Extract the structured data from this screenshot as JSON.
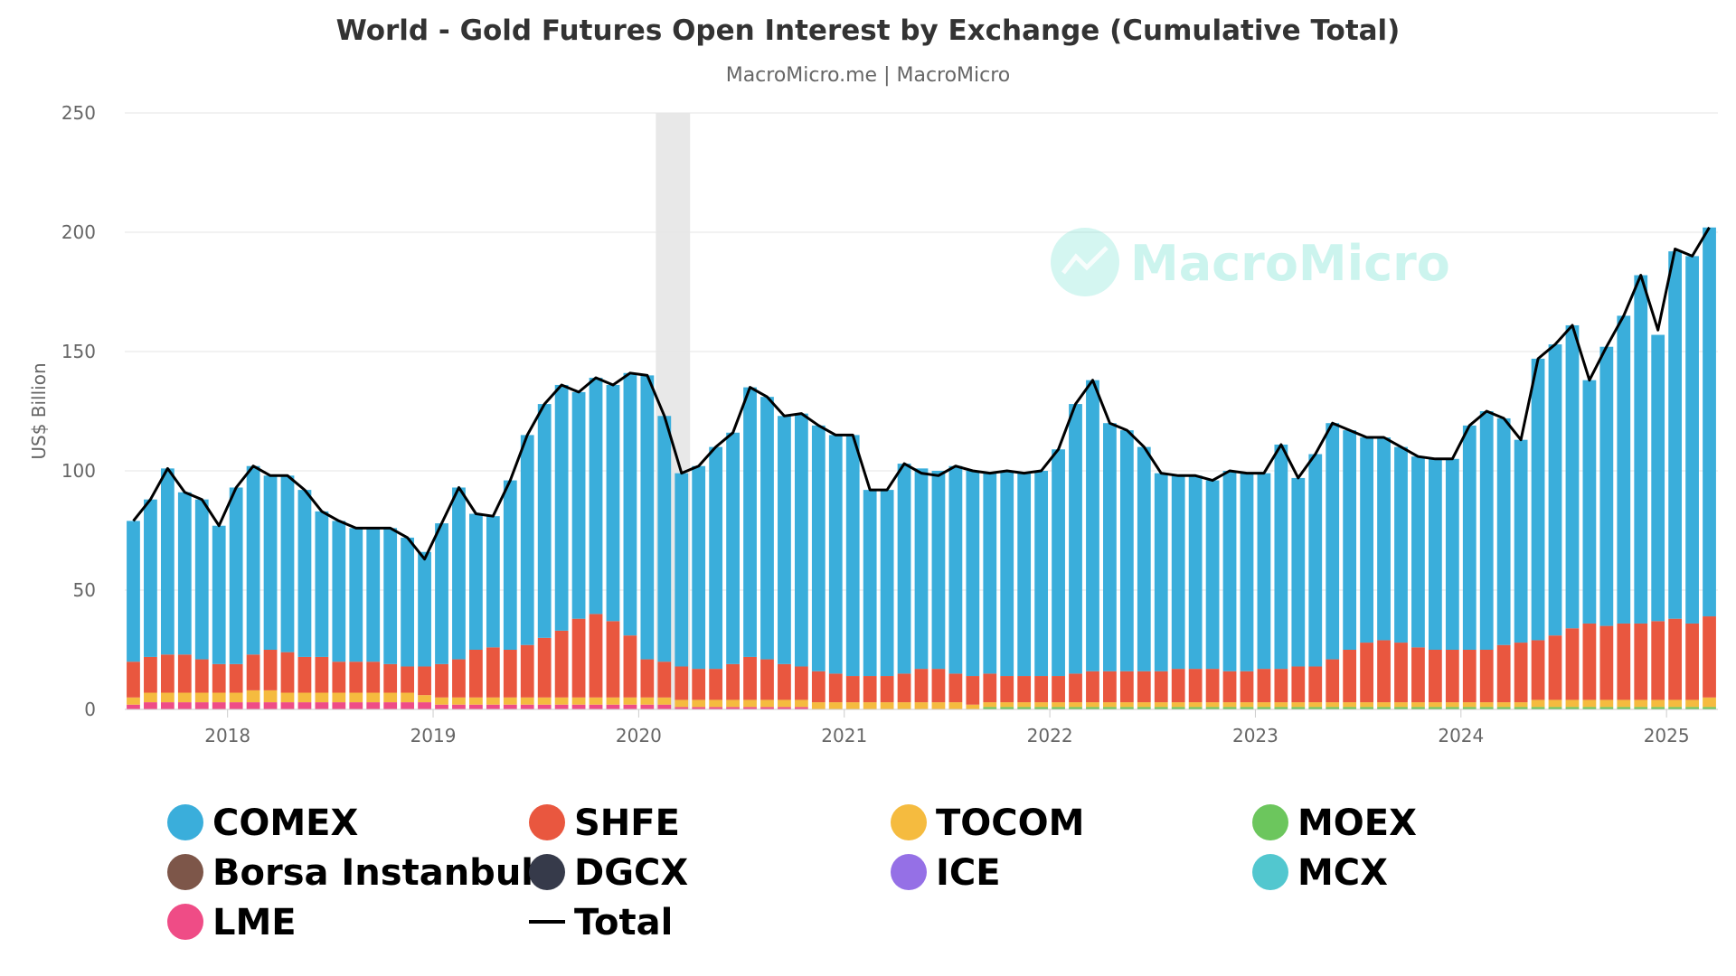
{
  "header": {
    "title": "World - Gold Futures Open Interest by Exchange (Cumulative Total)",
    "subtitle": "MacroMicro.me | MacroMicro"
  },
  "watermark": {
    "text": "MacroMicro"
  },
  "colors": {
    "COMEX": "#3aaedb",
    "SHFE": "#e9573f",
    "TOCOM": "#f5bb3f",
    "MOEX": "#6cc65d",
    "Borsa Instanbul": "#7d5649",
    "DGCX": "#363a4a",
    "ICE": "#9570e6",
    "MCX": "#52c7cf",
    "LME": "#ef4c86",
    "Total": "#000000",
    "gridline": "#e6e6e6",
    "highlight_band": "#e8e8e8"
  },
  "chart_data": {
    "type": "area",
    "stacked": true,
    "title": "World - Gold Futures Open Interest by Exchange (Cumulative Total)",
    "subtitle": "MacroMicro.me | MacroMicro",
    "ylabel": "US$ Billion",
    "xlabel": "",
    "ylim": [
      0,
      250
    ],
    "xlim": [
      "2017-07",
      "2025-04"
    ],
    "yticks": [
      "0",
      "50",
      "100",
      "150",
      "200",
      "250"
    ],
    "xticks": [
      "2018",
      "2019",
      "2020",
      "2021",
      "2022",
      "2023",
      "2024",
      "2025"
    ],
    "grid": true,
    "legend_position": "bottom",
    "shaded_period": [
      "2020-02",
      "2020-04"
    ],
    "legend": [
      "COMEX",
      "SHFE",
      "TOCOM",
      "MOEX",
      "Borsa Instanbul",
      "DGCX",
      "ICE",
      "MCX",
      "LME",
      "Total"
    ],
    "x": [
      "2017-07",
      "2017-08",
      "2017-09",
      "2017-10",
      "2017-11",
      "2017-12",
      "2018-01",
      "2018-02",
      "2018-03",
      "2018-04",
      "2018-05",
      "2018-06",
      "2018-07",
      "2018-08",
      "2018-09",
      "2018-10",
      "2018-11",
      "2018-12",
      "2019-01",
      "2019-02",
      "2019-03",
      "2019-04",
      "2019-05",
      "2019-06",
      "2019-07",
      "2019-08",
      "2019-09",
      "2019-10",
      "2019-11",
      "2019-12",
      "2020-01",
      "2020-02",
      "2020-03",
      "2020-04",
      "2020-05",
      "2020-06",
      "2020-07",
      "2020-08",
      "2020-09",
      "2020-10",
      "2020-11",
      "2020-12",
      "2021-01",
      "2021-02",
      "2021-03",
      "2021-04",
      "2021-05",
      "2021-06",
      "2021-07",
      "2021-08",
      "2021-09",
      "2021-10",
      "2021-11",
      "2021-12",
      "2022-01",
      "2022-02",
      "2022-03",
      "2022-04",
      "2022-05",
      "2022-06",
      "2022-07",
      "2022-08",
      "2022-09",
      "2022-10",
      "2022-11",
      "2022-12",
      "2023-01",
      "2023-02",
      "2023-03",
      "2023-04",
      "2023-05",
      "2023-06",
      "2023-07",
      "2023-08",
      "2023-09",
      "2023-10",
      "2023-11",
      "2023-12",
      "2024-01",
      "2024-02",
      "2024-03",
      "2024-04",
      "2024-05",
      "2024-06",
      "2024-07",
      "2024-08",
      "2024-09",
      "2024-10",
      "2024-11",
      "2024-12",
      "2025-01",
      "2025-02",
      "2025-03"
    ],
    "series": [
      {
        "name": "LME",
        "values": [
          2,
          3,
          3,
          3,
          3,
          3,
          3,
          3,
          3,
          3,
          3,
          3,
          3,
          3,
          3,
          3,
          3,
          3,
          2,
          2,
          2,
          2,
          2,
          2,
          2,
          2,
          2,
          2,
          2,
          2,
          2,
          2,
          1,
          1,
          1,
          1,
          1,
          1,
          1,
          1,
          0,
          0,
          0,
          0,
          0,
          0,
          0,
          0,
          0,
          0,
          0,
          0,
          0,
          0,
          0,
          0,
          0,
          0,
          0,
          0,
          0,
          0,
          0,
          0,
          0,
          0,
          0,
          0,
          0,
          0,
          0,
          0,
          0,
          0,
          0,
          0,
          0,
          0,
          0,
          0,
          0,
          0,
          0,
          0,
          0,
          0,
          0,
          0,
          0,
          0,
          0,
          0,
          0
        ]
      },
      {
        "name": "MOEX",
        "values": [
          0,
          0,
          0,
          0,
          0,
          0,
          0,
          0,
          0,
          0,
          0,
          0,
          0,
          0,
          0,
          0,
          0,
          0,
          0,
          0,
          0,
          0,
          0,
          0,
          0,
          0,
          0,
          0,
          0,
          0,
          0,
          0,
          0,
          0,
          0,
          0,
          0,
          0,
          0,
          0,
          0,
          0,
          0,
          0,
          0,
          0,
          0,
          0,
          0,
          0,
          1,
          1,
          1,
          1,
          1,
          1,
          1,
          1,
          1,
          1,
          1,
          1,
          1,
          1,
          1,
          1,
          1,
          1,
          1,
          1,
          1,
          1,
          1,
          1,
          1,
          1,
          1,
          1,
          1,
          1,
          1,
          1,
          1,
          1,
          1,
          1,
          1,
          1,
          1,
          1,
          1,
          1,
          1
        ]
      },
      {
        "name": "TOCOM",
        "values": [
          3,
          4,
          4,
          4,
          4,
          4,
          4,
          5,
          5,
          4,
          4,
          4,
          4,
          4,
          4,
          4,
          4,
          3,
          3,
          3,
          3,
          3,
          3,
          3,
          3,
          3,
          3,
          3,
          3,
          3,
          3,
          3,
          3,
          3,
          3,
          3,
          3,
          3,
          3,
          3,
          3,
          3,
          3,
          3,
          3,
          3,
          3,
          3,
          3,
          2,
          2,
          2,
          2,
          2,
          2,
          2,
          2,
          2,
          2,
          2,
          2,
          2,
          2,
          2,
          2,
          2,
          2,
          2,
          2,
          2,
          2,
          2,
          2,
          2,
          2,
          2,
          2,
          2,
          2,
          2,
          2,
          2,
          3,
          3,
          3,
          3,
          3,
          3,
          3,
          3,
          3,
          3,
          4
        ]
      },
      {
        "name": "SHFE",
        "values": [
          15,
          15,
          16,
          16,
          14,
          12,
          12,
          15,
          17,
          17,
          15,
          15,
          13,
          13,
          13,
          12,
          11,
          12,
          14,
          16,
          20,
          21,
          20,
          22,
          25,
          28,
          33,
          35,
          32,
          26,
          16,
          15,
          14,
          13,
          13,
          15,
          18,
          17,
          15,
          14,
          13,
          12,
          11,
          11,
          11,
          12,
          14,
          14,
          12,
          12,
          12,
          11,
          11,
          11,
          11,
          12,
          13,
          13,
          13,
          13,
          13,
          14,
          14,
          14,
          13,
          13,
          14,
          14,
          15,
          15,
          18,
          22,
          25,
          26,
          25,
          23,
          22,
          22,
          22,
          22,
          24,
          25,
          25,
          27,
          30,
          32,
          31,
          32,
          32,
          33,
          34,
          32,
          34
        ]
      },
      {
        "name": "COMEX",
        "values": [
          59,
          66,
          78,
          68,
          67,
          58,
          74,
          79,
          73,
          74,
          70,
          61,
          59,
          56,
          56,
          57,
          54,
          48,
          59,
          72,
          57,
          55,
          71,
          88,
          98,
          103,
          95,
          99,
          99,
          110,
          119,
          103,
          81,
          85,
          93,
          97,
          113,
          110,
          104,
          106,
          103,
          100,
          101,
          78,
          78,
          88,
          84,
          83,
          87,
          86,
          84,
          86,
          85,
          86,
          95,
          113,
          122,
          104,
          101,
          94,
          83,
          81,
          81,
          79,
          84,
          83,
          82,
          94,
          79,
          89,
          99,
          92,
          86,
          85,
          82,
          80,
          80,
          80,
          94,
          100,
          95,
          85,
          118,
          122,
          127,
          102,
          117,
          129,
          146,
          120,
          154,
          154,
          163
        ]
      },
      {
        "name": "Total",
        "values": [
          79,
          88,
          101,
          91,
          88,
          77,
          93,
          102,
          98,
          98,
          92,
          83,
          79,
          76,
          76,
          76,
          72,
          63,
          78,
          93,
          82,
          81,
          96,
          115,
          128,
          136,
          133,
          139,
          136,
          141,
          140,
          123,
          99,
          102,
          110,
          116,
          135,
          131,
          123,
          124,
          119,
          115,
          115,
          92,
          92,
          103,
          99,
          98,
          102,
          100,
          99,
          100,
          99,
          100,
          109,
          128,
          138,
          120,
          117,
          110,
          99,
          98,
          98,
          96,
          100,
          99,
          99,
          111,
          97,
          107,
          120,
          117,
          114,
          114,
          110,
          106,
          105,
          105,
          119,
          125,
          122,
          113,
          147,
          153,
          161,
          138,
          152,
          165,
          182,
          159,
          193,
          190,
          202
        ]
      }
    ]
  }
}
